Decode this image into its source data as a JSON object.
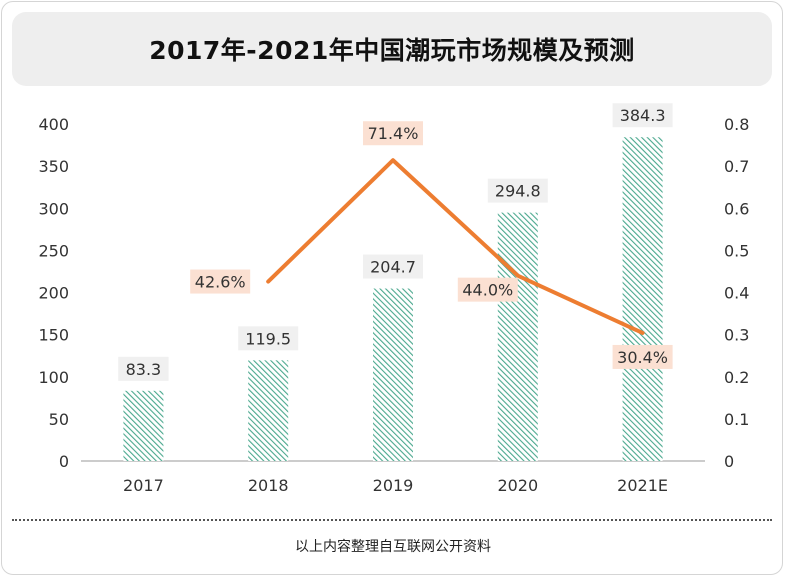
{
  "title": "2017年-2021年中国潮玩市场规模及预测",
  "source": "以上内容整理自互联网公开资料",
  "colors": {
    "bar": "#4aa88e",
    "bar_background": "#ffffff",
    "line": "#ed7d31",
    "bar_label_background": "#f0f0f0",
    "line_label_background": "#fbe0d2",
    "axis": "#999999",
    "text": "#333333"
  },
  "chart_data": {
    "type": "bar",
    "categories": [
      "2017",
      "2018",
      "2019",
      "2020",
      "2021E"
    ],
    "series": [
      {
        "type": "bar",
        "axis": "left",
        "values": [
          83.3,
          119.5,
          204.7,
          294.8,
          384.3
        ],
        "value_labels": [
          "83.3",
          "119.5",
          "204.7",
          "294.8",
          "384.3"
        ],
        "pattern": "diagonal-hatch"
      },
      {
        "type": "line",
        "axis": "right",
        "values": [
          null,
          0.426,
          0.714,
          0.44,
          0.304
        ],
        "value_labels": [
          "",
          "42.6%",
          "71.4%",
          "44.0%",
          "30.4%"
        ]
      }
    ],
    "y_left": {
      "min": 0,
      "max": 400,
      "ticks": [
        "0",
        "50",
        "100",
        "150",
        "200",
        "250",
        "300",
        "350",
        "400"
      ]
    },
    "y_right": {
      "min": 0,
      "max": 0.8,
      "ticks": [
        "0",
        "0.1",
        "0.2",
        "0.3",
        "0.4",
        "0.5",
        "0.6",
        "0.7",
        "0.8"
      ]
    },
    "grid": false,
    "legend": "none"
  }
}
